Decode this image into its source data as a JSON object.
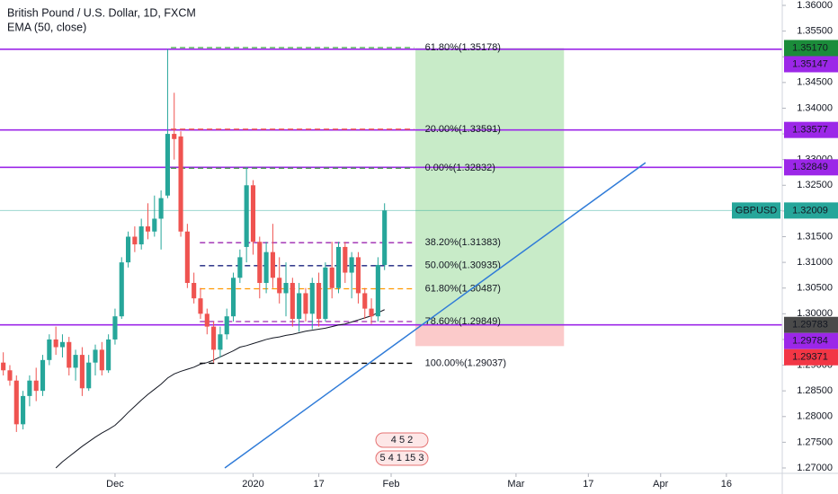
{
  "chart_data": {
    "type": "candlestick",
    "title": "British Pound / U.S. Dollar, 1D, FXCM",
    "indicator_label": "EMA (50, close)",
    "xlim": [
      -0.5,
      118.5
    ],
    "ylim": [
      1.26895,
      1.36105
    ],
    "xticks": [
      {
        "value": 17,
        "label": "Dec"
      },
      {
        "value": 38,
        "label": "2020"
      },
      {
        "value": 48,
        "label": "17"
      },
      {
        "value": 59,
        "label": "Feb"
      },
      {
        "value": 78,
        "label": "Mar"
      },
      {
        "value": 89,
        "label": "17"
      },
      {
        "value": 100,
        "label": "Apr"
      },
      {
        "value": 110,
        "label": "16"
      }
    ],
    "yticks": [
      {
        "value": 1.27,
        "label": "1.27000"
      },
      {
        "value": 1.275,
        "label": "1.27500"
      },
      {
        "value": 1.28,
        "label": "1.28000"
      },
      {
        "value": 1.285,
        "label": "1.28500"
      },
      {
        "value": 1.29,
        "label": "1.29000"
      },
      {
        "value": 1.295,
        "label": "1.29500"
      },
      {
        "value": 1.3,
        "label": "1.30000"
      },
      {
        "value": 1.305,
        "label": "1.30500"
      },
      {
        "value": 1.31,
        "label": "1.31000"
      },
      {
        "value": 1.315,
        "label": "1.31500"
      },
      {
        "value": 1.32,
        "label": "1.32000"
      },
      {
        "value": 1.325,
        "label": "1.32500"
      },
      {
        "value": 1.33,
        "label": "1.33000"
      },
      {
        "value": 1.335,
        "label": "1.33500"
      },
      {
        "value": 1.34,
        "label": "1.34000"
      },
      {
        "value": 1.345,
        "label": "1.34500"
      },
      {
        "value": 1.35,
        "label": "1.35000"
      },
      {
        "value": 1.355,
        "label": "1.35500"
      },
      {
        "value": 1.36,
        "label": "1.36000"
      }
    ],
    "up_color": "#26a69a",
    "down_color": "#ef5350",
    "candles": {
      "open": [
        1.2905,
        1.289,
        1.287,
        1.2785,
        1.284,
        1.287,
        1.285,
        1.291,
        1.295,
        1.2935,
        1.2945,
        1.2895,
        1.292,
        1.2855,
        1.2905,
        1.293,
        1.289,
        1.295,
        1.2995,
        1.31,
        1.315,
        1.3135,
        1.317,
        1.316,
        1.3185,
        1.323,
        1.335,
        1.3345,
        1.316,
        1.306,
        1.303,
        1.3,
        1.2975,
        1.293,
        1.296,
        1.2995,
        1.307,
        1.313,
        1.325,
        1.314,
        1.306,
        1.312,
        1.307,
        1.304,
        1.306,
        1.299,
        1.304,
        1.3,
        1.306,
        1.299,
        1.309,
        1.305,
        1.313,
        1.308,
        1.311,
        1.304,
        1.301,
        1.2995,
        1.3095
      ],
      "high": [
        1.2925,
        1.29,
        1.288,
        1.285,
        1.288,
        1.2895,
        1.292,
        1.296,
        1.2975,
        1.296,
        1.2955,
        1.293,
        1.2935,
        1.292,
        1.294,
        1.2945,
        1.296,
        1.301,
        1.311,
        1.316,
        1.317,
        1.3185,
        1.3215,
        1.323,
        1.324,
        1.3515,
        1.343,
        1.3355,
        1.3175,
        1.308,
        1.305,
        1.301,
        1.2985,
        1.2975,
        1.301,
        1.308,
        1.3125,
        1.3285,
        1.326,
        1.315,
        1.314,
        1.3175,
        1.311,
        1.31,
        1.307,
        1.306,
        1.305,
        1.307,
        1.308,
        1.31,
        1.314,
        1.314,
        1.314,
        1.312,
        1.312,
        1.305,
        1.303,
        1.311,
        1.3215
      ],
      "low": [
        1.288,
        1.286,
        1.277,
        1.2775,
        1.282,
        1.283,
        1.284,
        1.29,
        1.292,
        1.2915,
        1.288,
        1.287,
        1.284,
        1.285,
        1.288,
        1.288,
        1.2885,
        1.294,
        1.299,
        1.309,
        1.312,
        1.3125,
        1.3145,
        1.315,
        1.3125,
        1.3225,
        1.33,
        1.315,
        1.305,
        1.302,
        1.299,
        1.296,
        1.2905,
        1.2915,
        1.295,
        1.2985,
        1.306,
        1.31,
        1.3115,
        1.303,
        1.304,
        1.305,
        1.302,
        1.2995,
        1.2975,
        1.2965,
        1.2985,
        1.297,
        1.2975,
        1.2985,
        1.303,
        1.304,
        1.306,
        1.303,
        1.302,
        1.299,
        1.298,
        1.2985,
        1.3085
      ],
      "close": [
        1.289,
        1.287,
        1.2785,
        1.284,
        1.287,
        1.285,
        1.291,
        1.295,
        1.2935,
        1.2945,
        1.2895,
        1.292,
        1.2855,
        1.2905,
        1.293,
        1.289,
        1.295,
        1.2995,
        1.31,
        1.315,
        1.3135,
        1.317,
        1.316,
        1.3185,
        1.3225,
        1.335,
        1.334,
        1.316,
        1.306,
        1.303,
        1.3,
        1.2975,
        1.293,
        1.296,
        1.2995,
        1.307,
        1.311,
        1.325,
        1.314,
        1.306,
        1.312,
        1.307,
        1.304,
        1.306,
        1.299,
        1.304,
        1.3,
        1.306,
        1.299,
        1.309,
        1.305,
        1.313,
        1.308,
        1.311,
        1.304,
        1.301,
        1.2995,
        1.3095,
        1.3201
      ]
    },
    "ema": {
      "color": "#131722",
      "values": [
        null,
        null,
        null,
        null,
        null,
        null,
        null,
        null,
        1.27,
        1.2712,
        1.2722,
        1.2732,
        1.2742,
        1.2751,
        1.276,
        1.2768,
        1.2775,
        1.2783,
        1.2795,
        1.2808,
        1.282,
        1.2832,
        1.2843,
        1.2853,
        1.2863,
        1.2875,
        1.2883,
        1.2888,
        1.2892,
        1.2896,
        1.2902,
        1.2905,
        1.291,
        1.2916,
        1.2922,
        1.2928,
        1.2935,
        1.2938,
        1.2942,
        1.2946,
        1.295,
        1.2953,
        1.2955,
        1.2958,
        1.296,
        1.2963,
        1.2966,
        1.2968,
        1.297,
        1.2972,
        1.2975,
        1.2978,
        1.298,
        1.2984,
        1.2988,
        1.2992,
        1.2996,
        1.3002,
        1.3008
      ]
    },
    "fib_extension": {
      "x": [
        25.5,
        62.5
      ],
      "levels": [
        {
          "value": 1.35178,
          "label": "61.80%(1.35178)",
          "color": "#4caf50"
        },
        {
          "value": 1.33591,
          "label": "20.00%(1.33591)",
          "color": "#f44336"
        },
        {
          "value": 1.32832,
          "label": "0.00%(1.32832)",
          "color": "#388e3c"
        }
      ]
    },
    "fib_retracement": {
      "x": [
        29.9,
        62.5
      ],
      "levels": [
        {
          "value": 1.31383,
          "label": "38.20%(1.31383)",
          "color": "#9c27b0"
        },
        {
          "value": 1.30935,
          "label": "50.00%(1.30935)",
          "color": "#1a237e"
        },
        {
          "value": 1.30487,
          "label": "61.80%(1.30487)",
          "color": "#ff9800"
        },
        {
          "value": 1.29849,
          "label": "78.60%(1.29849)",
          "color": "#9c27b0"
        },
        {
          "value": 1.29037,
          "label": "100.00%(1.29037)",
          "color": "#000000"
        }
      ]
    },
    "position": {
      "entry": 1.29783,
      "target": 1.3517,
      "stop": 1.29371,
      "x": [
        62.7,
        85.3
      ],
      "target_color": "#c8ebc8",
      "stop_color": "#fbcaca"
    },
    "trendline": {
      "x": [
        33.7,
        97.7
      ],
      "y": [
        1.27,
        1.3294
      ],
      "color": "#2f7bd8"
    },
    "price_tags": [
      {
        "value": 1.3517,
        "label": "1.35170",
        "color": "#1b8c3a",
        "line": false
      },
      {
        "value": 1.35147,
        "label": "1.35147",
        "color": "#9c27e8",
        "line": true
      },
      {
        "value": 1.33577,
        "label": "1.33577",
        "color": "#9c27e8",
        "line": true
      },
      {
        "value": 1.32849,
        "label": "1.32849",
        "color": "#9c27e8",
        "line": true
      },
      {
        "value": 1.32009,
        "label": "1.32009",
        "color": "#26a69a",
        "line": true,
        "name": "GBPUSD"
      },
      {
        "value": 1.29783,
        "label": "1.29783",
        "color": "#4a4a4a",
        "line": false
      },
      {
        "value": 1.29784,
        "label": "1.29784",
        "color": "#9c27e8",
        "line": true
      },
      {
        "value": 1.29371,
        "label": "1.29371",
        "color": "#f23645",
        "line": false
      }
    ],
    "event_rows": [
      "4 5 2",
      "5 4 1 15 3"
    ]
  }
}
